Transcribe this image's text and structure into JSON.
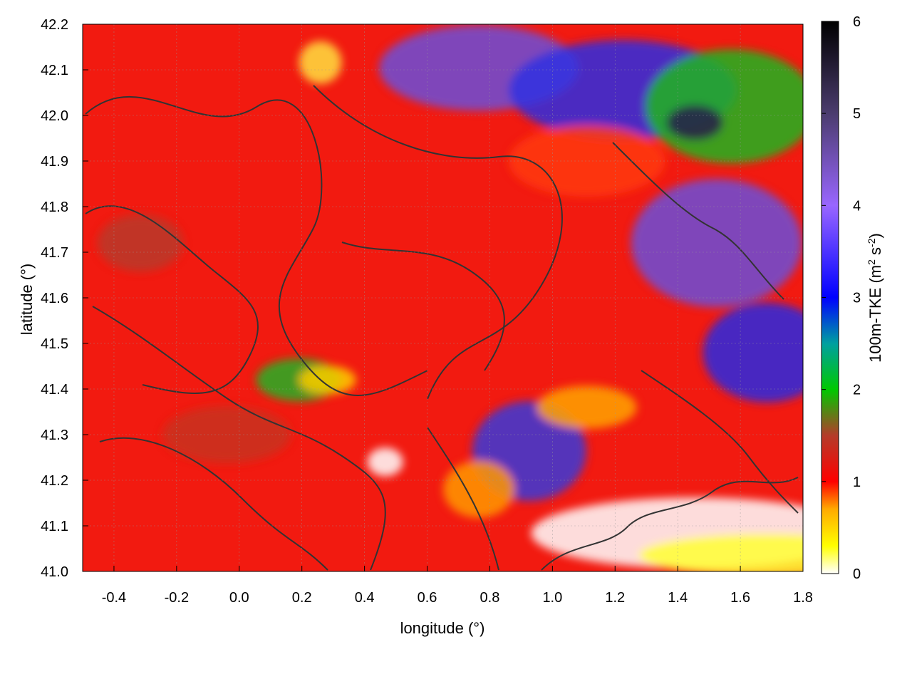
{
  "chart_data": {
    "type": "heatmap",
    "title": "",
    "xlabel": "longitude (°)",
    "ylabel": "latitude (°)",
    "xlim": [
      -0.5,
      1.8
    ],
    "ylim": [
      41.0,
      42.2
    ],
    "x_ticks": [
      -0.4,
      -0.2,
      0.0,
      0.2,
      0.4,
      0.6,
      0.8,
      1.0,
      1.2,
      1.4,
      1.6,
      1.8
    ],
    "x_tick_labels": [
      "-0.4",
      "-0.2",
      "0.0",
      "0.2",
      "0.4",
      "0.6",
      "0.8",
      "1.0",
      "1.2",
      "1.4",
      "1.6",
      "1.8"
    ],
    "y_ticks": [
      41.0,
      41.1,
      41.2,
      41.3,
      41.4,
      41.5,
      41.6,
      41.7,
      41.8,
      41.9,
      42.0,
      42.1,
      42.2
    ],
    "y_tick_labels": [
      "41.0",
      "41.1",
      "41.2",
      "41.3",
      "41.4",
      "41.5",
      "41.6",
      "41.7",
      "41.8",
      "41.9",
      "42.0",
      "42.1",
      "42.2"
    ],
    "grid": true,
    "colorbar": {
      "label": "100m-TKE (m",
      "label_sup1": "2",
      "label_mid": " s",
      "label_sup2": "-2",
      "label_end": ")",
      "range": [
        0,
        6
      ],
      "ticks": [
        0,
        1,
        2,
        3,
        4,
        5,
        6
      ],
      "tick_labels": [
        "0",
        "1",
        "2",
        "3",
        "4",
        "5",
        "6"
      ],
      "colormap": [
        {
          "value": 0.0,
          "color": "#ffffff"
        },
        {
          "value": 0.3,
          "color": "#ffff00"
        },
        {
          "value": 0.7,
          "color": "#ffaa00"
        },
        {
          "value": 1.0,
          "color": "#ff0000"
        },
        {
          "value": 1.5,
          "color": "#b43c2a"
        },
        {
          "value": 2.0,
          "color": "#00c800"
        },
        {
          "value": 2.5,
          "color": "#00a0a0"
        },
        {
          "value": 3.0,
          "color": "#0000ff"
        },
        {
          "value": 4.0,
          "color": "#9966ff"
        },
        {
          "value": 5.0,
          "color": "#4b3c6e"
        },
        {
          "value": 6.0,
          "color": "#000000"
        }
      ]
    },
    "field_description": "100m turbulent kinetic energy field; dark gray contour lines overlay (terrain)",
    "contour_color": "#333333"
  }
}
